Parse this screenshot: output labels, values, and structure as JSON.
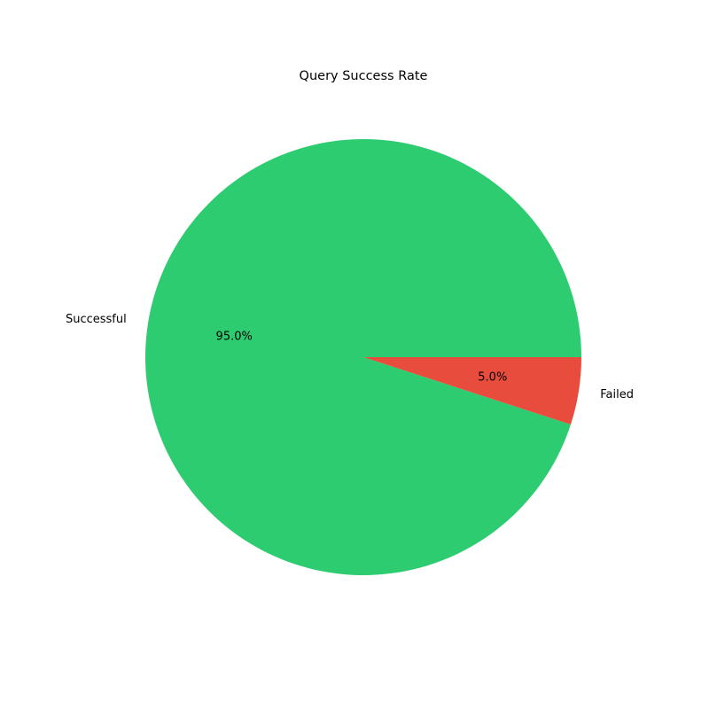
{
  "chart_data": {
    "type": "pie",
    "title": "Query Success Rate",
    "slices": [
      {
        "label": "Successful",
        "value": 95.0,
        "percent_label": "95.0%",
        "color": "#2ecc71"
      },
      {
        "label": "Failed",
        "value": 5.0,
        "percent_label": "5.0%",
        "color": "#e74c3c"
      }
    ],
    "start_angle_deg": 0,
    "direction": "counterclockwise",
    "legend": "none"
  }
}
